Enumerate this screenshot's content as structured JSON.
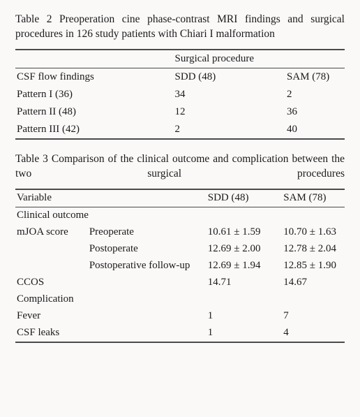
{
  "table2": {
    "caption_prefix": "Table 2",
    "caption_rest": "  Preoperation cine phase-contrast MRI findings and surgical procedures in 126 study patients with Chiari I malformation",
    "super_header": "Surgical procedure",
    "col_headers": [
      "CSF flow findings",
      "SDD (48)",
      "SAM (78)"
    ],
    "rows": [
      [
        "Pattern I (36)",
        "34",
        "2"
      ],
      [
        "Pattern II (48)",
        "12",
        "36"
      ],
      [
        "Pattern III (42)",
        "2",
        "40"
      ]
    ],
    "col_widths": [
      "48%",
      "34%",
      "18%"
    ],
    "border_color": "#4a4a4a",
    "background_color": "#fbf9f8",
    "font_family": "Times New Roman"
  },
  "table3": {
    "caption_prefix": "Table 3",
    "caption_rest": "    Comparison of the clinical outcome and complication between the two surgical procedures",
    "col_headers": [
      "Variable",
      "SDD (48)",
      "SAM (78)"
    ],
    "section1_label": "Clinical outcome",
    "mjoa_label": "mJOA score",
    "mjoa_rows": [
      [
        "Preoperate",
        "10.61 ± 1.59",
        "10.70 ± 1.63"
      ],
      [
        "Postoperate",
        "12.69 ± 2.00",
        "12.78 ± 2.04"
      ],
      [
        "Postoperative follow-up",
        "12.69 ± 1.94",
        "12.85 ± 1.90"
      ]
    ],
    "ccos_row": [
      "CCOS",
      "14.71",
      "14.67"
    ],
    "section2_label": "Complication",
    "comp_rows": [
      [
        "Fever",
        "1",
        "7"
      ],
      [
        "CSF leaks",
        "1",
        "4"
      ]
    ],
    "col_widths": [
      "22%",
      "36%",
      "23%",
      "19%"
    ],
    "border_color": "#4a4a4a",
    "background_color": "#fbf9f8",
    "font_family": "Times New Roman"
  }
}
